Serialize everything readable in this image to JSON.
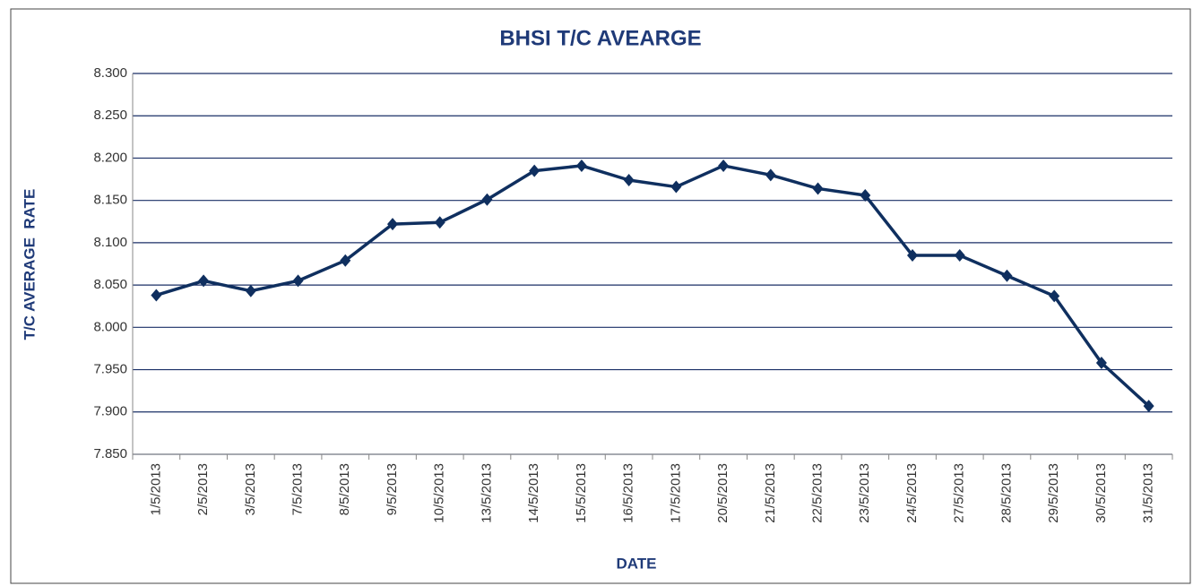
{
  "chart_data": {
    "type": "line",
    "title": "BHSI T/C AVEARGE",
    "y_label": "T/C AVERAGE  RATE",
    "x_label": "DATE",
    "categories": [
      "1/5/2013",
      "2/5/2013",
      "3/5/2013",
      "7/5/2013",
      "8/5/2013",
      "9/5/2013",
      "10/5/2013",
      "13/5/2013",
      "14/5/2013",
      "15/5/2013",
      "16/5/2013",
      "17/5/2013",
      "20/5/2013",
      "21/5/2013",
      "22/5/2013",
      "23/5/2013",
      "24/5/2013",
      "27/5/2013",
      "28/5/2013",
      "29/5/2013",
      "30/5/2013",
      "31/5/2013"
    ],
    "values": [
      8.038,
      8.055,
      8.043,
      8.055,
      8.079,
      8.122,
      8.124,
      8.151,
      8.185,
      8.191,
      8.174,
      8.166,
      8.191,
      8.18,
      8.164,
      8.156,
      8.085,
      8.085,
      8.061,
      8.037,
      7.958,
      7.907
    ],
    "color": "#0f2f5f",
    "ylim": [
      7.85,
      8.3
    ],
    "yticks": [
      {
        "value": 7.85,
        "label": "7.850"
      },
      {
        "value": 7.9,
        "label": "7.900"
      },
      {
        "value": 7.95,
        "label": "7.950"
      },
      {
        "value": 8.0,
        "label": "8.000"
      },
      {
        "value": 8.05,
        "label": "8.050"
      },
      {
        "value": 8.1,
        "label": "8.100"
      },
      {
        "value": 8.15,
        "label": "8.150"
      },
      {
        "value": 8.2,
        "label": "8.200"
      },
      {
        "value": 8.25,
        "label": "8.250"
      },
      {
        "value": 8.3,
        "label": "8.300"
      }
    ],
    "grid": true
  }
}
